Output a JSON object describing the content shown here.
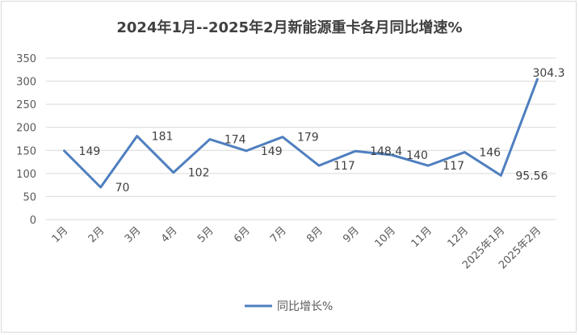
{
  "chart_data": {
    "type": "line",
    "title": "2024年1月--2025年2月新能源重卡各月同比增速%",
    "categories": [
      "1月",
      "2月",
      "3月",
      "4月",
      "5月",
      "6月",
      "7月",
      "8月",
      "9月",
      "10月",
      "11月",
      "12月",
      "2025年1月",
      "2025年2月"
    ],
    "series": [
      {
        "name": "同比增长%",
        "values": [
          149,
          70,
          181,
          102,
          174,
          149,
          179,
          117,
          148.4,
          140,
          117,
          146,
          95.56,
          304.3
        ],
        "color": "#4f7fbf"
      }
    ],
    "ylim": [
      0,
      350
    ],
    "yticks": [
      0,
      50,
      100,
      150,
      200,
      250,
      300,
      350
    ],
    "grid": true,
    "legend": "bottom",
    "xlabel": "",
    "ylabel": ""
  }
}
